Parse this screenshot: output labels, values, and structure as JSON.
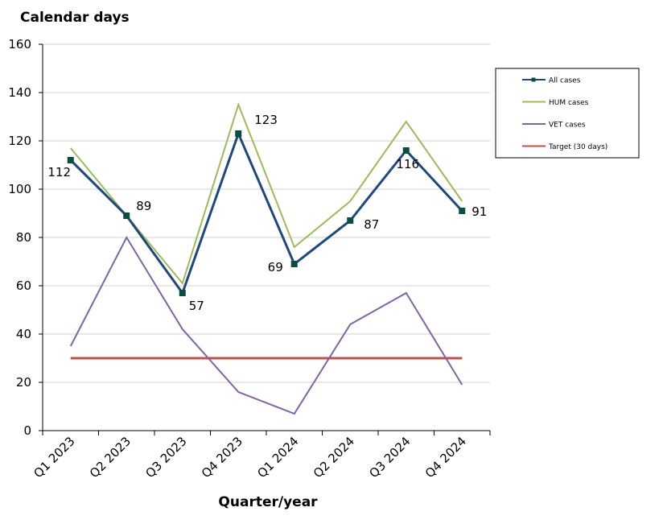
{
  "chart_data": {
    "type": "line",
    "ylabel": "Calendar days",
    "xlabel": "Quarter/year",
    "ylim": [
      0,
      160
    ],
    "yticks": [
      0,
      20,
      40,
      60,
      80,
      100,
      120,
      140,
      160
    ],
    "grid": true,
    "legend_position": "right",
    "categories": [
      "Q1 2023",
      "Q2 2023",
      "Q3 2023",
      "Q4 2023",
      "Q1 2024",
      "Q2 2024",
      "Q3 2024",
      "Q4 2024"
    ],
    "series": [
      {
        "name": "All cases",
        "color": "#1f497d",
        "marker": "square",
        "marker_color": "#0b4d3f",
        "data_labels": true,
        "values": [
          112,
          89,
          57,
          123,
          69,
          87,
          116,
          91
        ]
      },
      {
        "name": "HUM cases",
        "color": "#9bbb59",
        "marker": "none",
        "values": [
          117,
          89,
          61,
          135,
          76,
          95,
          128,
          95
        ]
      },
      {
        "name": "VET cases",
        "color": "#8064a2",
        "marker": "none",
        "values": [
          35,
          80,
          42,
          16,
          7,
          44,
          57,
          19
        ]
      },
      {
        "name": "Target (30 days)",
        "color": "#c0504d",
        "marker": "none",
        "values": [
          30,
          30,
          30,
          30,
          30,
          30,
          30,
          30
        ]
      }
    ]
  }
}
